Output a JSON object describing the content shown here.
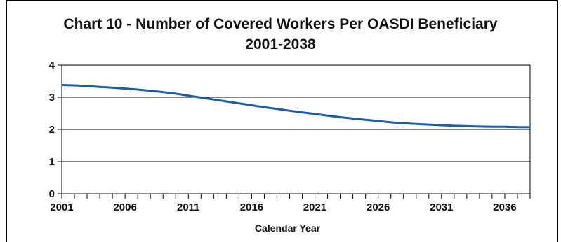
{
  "chart_data": {
    "type": "line",
    "title": "Chart 10 - Number of Covered Workers Per OASDI Beneficiary",
    "subtitle": "2001-2038",
    "xlabel": "Calendar Year",
    "ylabel": "",
    "xlim": [
      2001,
      2038
    ],
    "ylim": [
      0,
      4
    ],
    "yticks": [
      0,
      1,
      2,
      3,
      4
    ],
    "xticks": [
      2001,
      2006,
      2011,
      2016,
      2021,
      2026,
      2031,
      2036
    ],
    "grid": true,
    "line_color": "#1a5ea8",
    "series": [
      {
        "x": [
          2001,
          2002,
          2003,
          2004,
          2005,
          2006,
          2007,
          2008,
          2009,
          2010,
          2011,
          2012,
          2013,
          2014,
          2015,
          2016,
          2017,
          2018,
          2019,
          2020,
          2021,
          2022,
          2023,
          2024,
          2025,
          2026,
          2027,
          2028,
          2029,
          2030,
          2031,
          2032,
          2033,
          2034,
          2035,
          2036,
          2037,
          2038
        ],
        "values": [
          3.38,
          3.37,
          3.35,
          3.32,
          3.3,
          3.27,
          3.24,
          3.2,
          3.16,
          3.11,
          3.05,
          2.99,
          2.93,
          2.87,
          2.81,
          2.75,
          2.69,
          2.64,
          2.58,
          2.53,
          2.48,
          2.43,
          2.38,
          2.34,
          2.3,
          2.26,
          2.22,
          2.19,
          2.17,
          2.15,
          2.13,
          2.11,
          2.1,
          2.09,
          2.08,
          2.08,
          2.07,
          2.07
        ]
      }
    ]
  }
}
